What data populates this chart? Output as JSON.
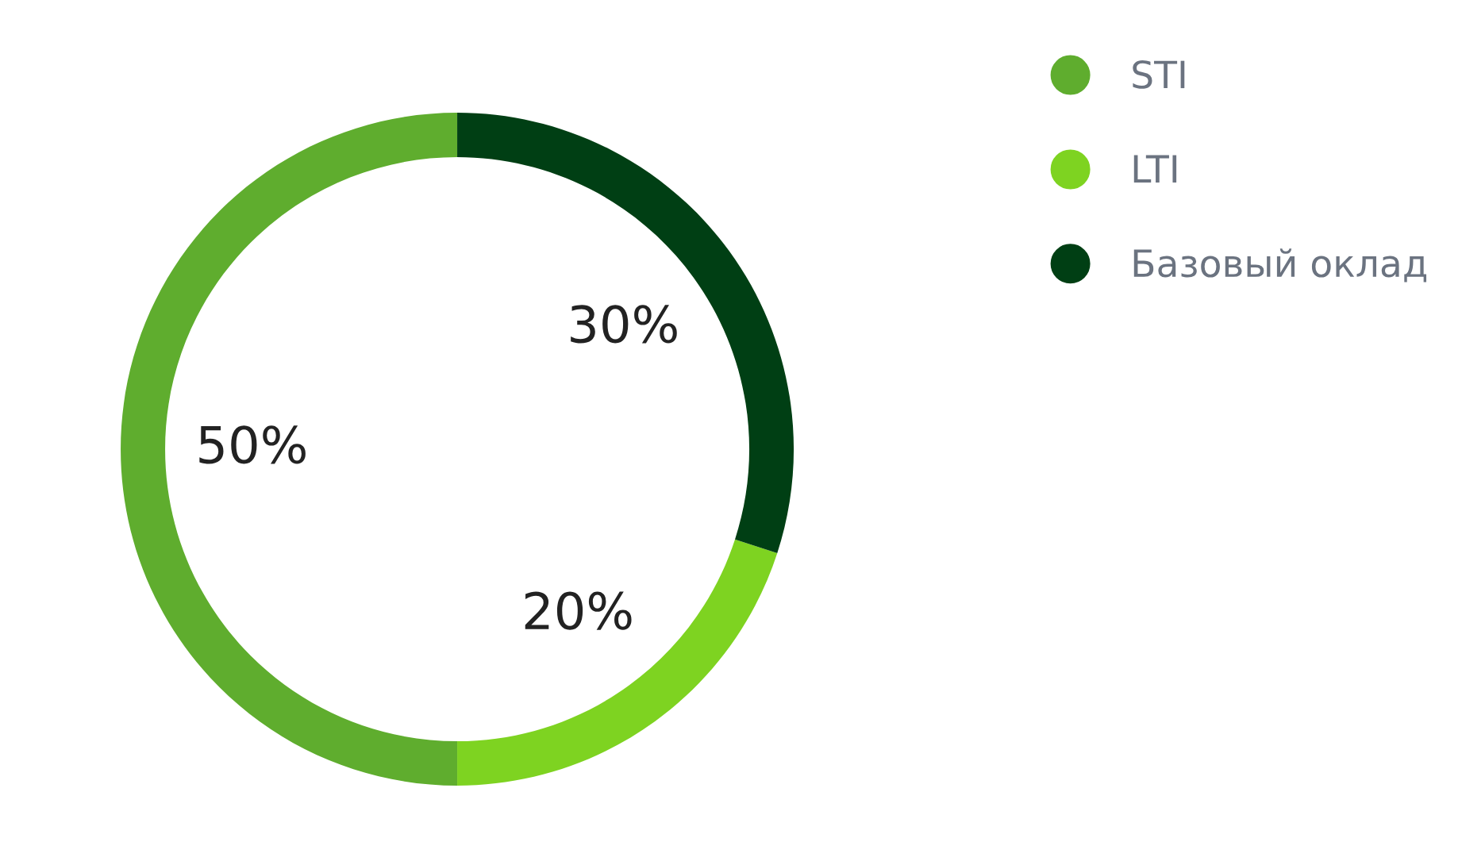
{
  "chart_data": {
    "type": "donut",
    "categories": [
      "STI",
      "LTI",
      "Базовый оклад"
    ],
    "values": [
      50,
      20,
      30
    ],
    "colors": [
      "#5fad2e",
      "#7ed321",
      "#003f14"
    ],
    "value_labels": [
      "50%",
      "20%",
      "30%"
    ],
    "legend": "top right"
  }
}
